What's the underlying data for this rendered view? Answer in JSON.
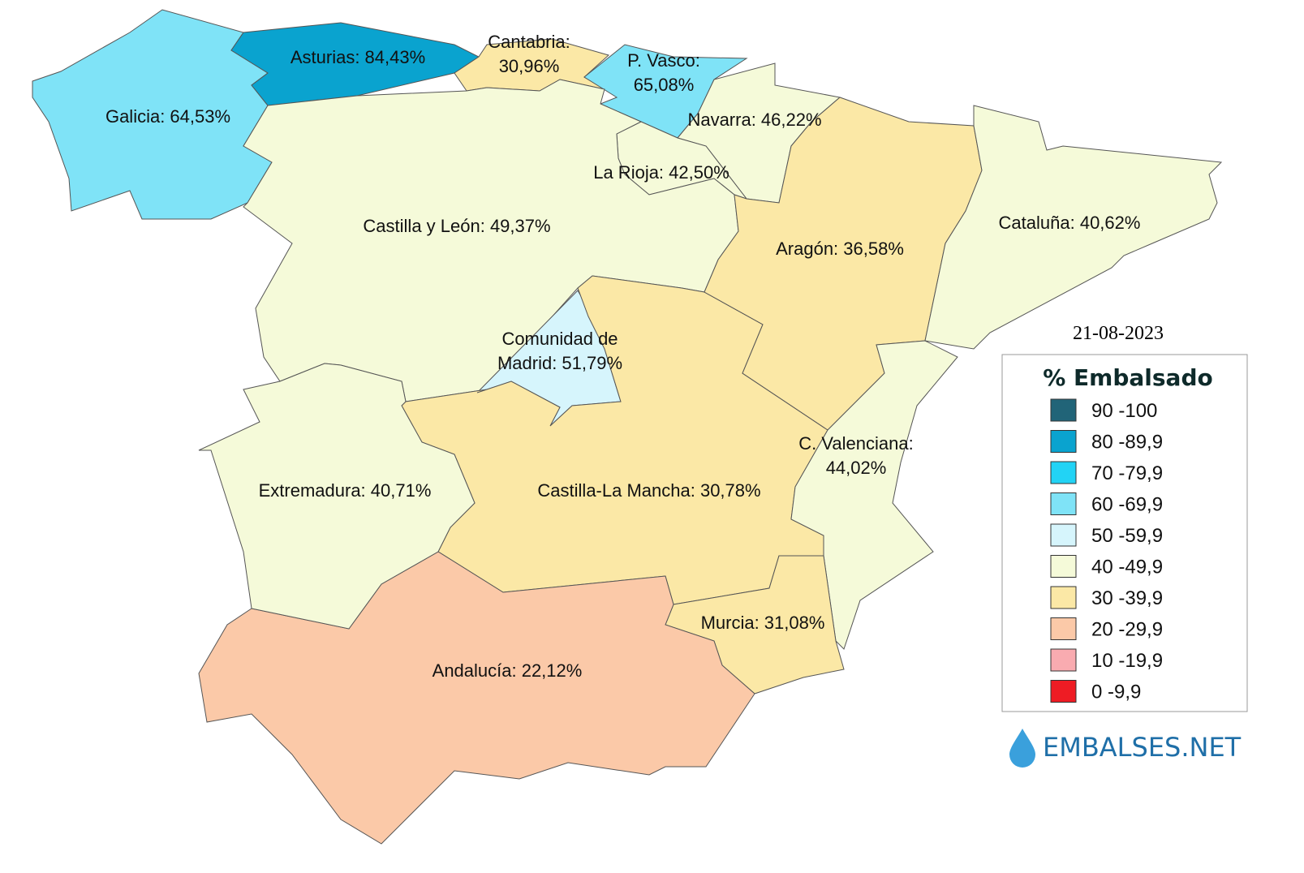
{
  "title": "% Embalsado",
  "date": "21-08-2023",
  "logo": "EMBALSES.NET",
  "regions": [
    {
      "label": [
        "Galicia: 64,53%"
      ],
      "color": "#7fe3f7"
    },
    {
      "label": [
        "Asturias: 84,43%"
      ],
      "color": "#0aa3cf"
    },
    {
      "label": [
        "Cantabria:",
        "30,96%"
      ],
      "color": "#fbe8a6"
    },
    {
      "label": [
        "P. Vasco:",
        "65,08%"
      ],
      "color": "#7fe3f7"
    },
    {
      "label": [
        "Navarra: 46,22%"
      ],
      "color": "#f5fad9"
    },
    {
      "label": [
        "La Rioja: 42,50%"
      ],
      "color": "#f5fad9"
    },
    {
      "label": [
        "Castilla y León: 49,37%"
      ],
      "color": "#f5fad9"
    },
    {
      "label": [
        "Comunidad de",
        "Madrid: 51,79%"
      ],
      "color": "#d6f5fc"
    },
    {
      "label": [
        "Castilla-La Mancha: 30,78%"
      ],
      "color": "#fbe8a6"
    },
    {
      "label": [
        "Aragón: 36,58%"
      ],
      "color": "#fbe8a6"
    },
    {
      "label": [
        "Cataluña: 40,62%"
      ],
      "color": "#f5fad9"
    },
    {
      "label": [
        "C. Valenciana:",
        "44,02%"
      ],
      "color": "#f5fad9"
    },
    {
      "label": [
        "Murcia: 31,08%"
      ],
      "color": "#fbe8a6"
    },
    {
      "label": [
        "Andalucía: 22,12%"
      ],
      "color": "#fbc9a8"
    },
    {
      "label": [
        "Extremadura: 40,71%"
      ],
      "color": "#f5fad9"
    }
  ],
  "legend": [
    {
      "label": "90 -100",
      "color": "#216478"
    },
    {
      "label": "80 -89,9",
      "color": "#0aa3cf"
    },
    {
      "label": "70 -79,9",
      "color": "#22d3f5"
    },
    {
      "label": "60 -69,9",
      "color": "#7fe3f7"
    },
    {
      "label": "50 -59,9",
      "color": "#d6f5fc"
    },
    {
      "label": "40 -49,9",
      "color": "#f5fad9"
    },
    {
      "label": "30 -39,9",
      "color": "#fbe8a6"
    },
    {
      "label": "20 -29,9",
      "color": "#fbc9a8"
    },
    {
      "label": "10 -19,9",
      "color": "#f9abb0"
    },
    {
      "label": "0 -9,9",
      "color": "#ee1c24"
    }
  ]
}
